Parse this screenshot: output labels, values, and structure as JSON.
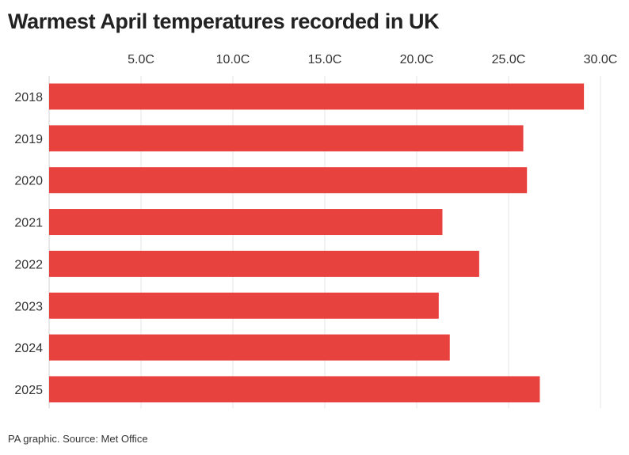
{
  "title": "Warmest April temperatures recorded in UK",
  "source": "PA graphic. Source: Met Office",
  "colors": {
    "bar": "#e8423f",
    "grid": "#e6e6e6",
    "axis": "#d0d0d0",
    "text": "#222222"
  },
  "chart_data": {
    "type": "bar",
    "orientation": "horizontal",
    "categories": [
      "2018",
      "2019",
      "2020",
      "2021",
      "2022",
      "2023",
      "2024",
      "2025"
    ],
    "values": [
      29.1,
      25.8,
      26.0,
      21.4,
      23.4,
      21.2,
      21.8,
      26.7
    ],
    "xlim": [
      0,
      30
    ],
    "xticks": [
      5,
      10,
      15,
      20,
      25,
      30
    ],
    "xtick_labels": [
      "5.0C",
      "10.0C",
      "15.0C",
      "20.0C",
      "25.0C",
      "30.0C"
    ],
    "grid": true,
    "title": "Warmest April temperatures recorded in UK",
    "xlabel": "",
    "ylabel": ""
  }
}
